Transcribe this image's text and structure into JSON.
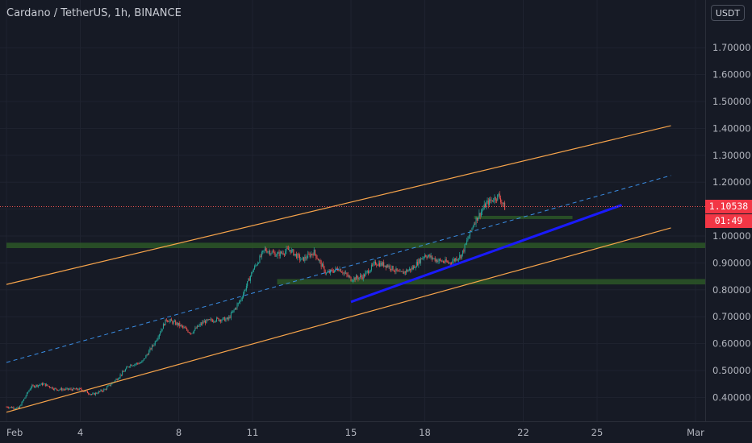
{
  "header": {
    "symbol_title": "Cardano / TetherUS, 1h, BINANCE",
    "currency_button": "USDT"
  },
  "price_badge": {
    "price": "1.10538",
    "countdown": "01:49",
    "color": "#f23645"
  },
  "colors": {
    "background": "#161a25",
    "grid": "#1f2330",
    "up_candle": "#26a69a",
    "down_candle": "#ef5350",
    "channel": "#f7a44b",
    "trendline": "#1a1aff",
    "midline": "#3a8ee6",
    "zone": "#2d5a27"
  },
  "chart_data": {
    "type": "candlestick",
    "symbol": "Cardano / TetherUS",
    "interval": "1h",
    "exchange": "BINANCE",
    "y_tick_labels": [
      "1.70000",
      "1.60000",
      "1.50000",
      "1.40000",
      "1.30000",
      "1.20000",
      "1.10000",
      "1.00000",
      "0.90000",
      "0.80000",
      "0.70000",
      "0.60000",
      "0.50000",
      "0.40000"
    ],
    "y_ticks": [
      1.7,
      1.6,
      1.5,
      1.4,
      1.3,
      1.2,
      1.1,
      1.0,
      0.9,
      0.8,
      0.7,
      0.6,
      0.5,
      0.4
    ],
    "x_tick_labels": [
      "Feb",
      "4",
      "8",
      "11",
      "15",
      "18",
      "22",
      "25",
      "Mar"
    ],
    "x_ticks": [
      "2021-02-01",
      "2021-02-04",
      "2021-02-08",
      "2021-02-11",
      "2021-02-15",
      "2021-02-18",
      "2021-02-22",
      "2021-02-25",
      "2021-03-01"
    ],
    "grid": true,
    "last_price": 1.10538,
    "price_path": [
      [
        "2021-02-01",
        0.365
      ],
      [
        "2021-02-01T12",
        0.36
      ],
      [
        "2021-02-02",
        0.44
      ],
      [
        "2021-02-02T12",
        0.45
      ],
      [
        "2021-02-03",
        0.43
      ],
      [
        "2021-02-03T12",
        0.43
      ],
      [
        "2021-02-04",
        0.43
      ],
      [
        "2021-02-04T12",
        0.41
      ],
      [
        "2021-02-05",
        0.43
      ],
      [
        "2021-02-05T12",
        0.47
      ],
      [
        "2021-02-06",
        0.52
      ],
      [
        "2021-02-06T12",
        0.53
      ],
      [
        "2021-02-07",
        0.6
      ],
      [
        "2021-02-07T12",
        0.69
      ],
      [
        "2021-02-08",
        0.67
      ],
      [
        "2021-02-08T12",
        0.64
      ],
      [
        "2021-02-09",
        0.68
      ],
      [
        "2021-02-09T12",
        0.69
      ],
      [
        "2021-02-10",
        0.69
      ],
      [
        "2021-02-10T12",
        0.76
      ],
      [
        "2021-02-11",
        0.87
      ],
      [
        "2021-02-11T12",
        0.95
      ],
      [
        "2021-02-12",
        0.93
      ],
      [
        "2021-02-12T12",
        0.95
      ],
      [
        "2021-02-13",
        0.91
      ],
      [
        "2021-02-13T12",
        0.94
      ],
      [
        "2021-02-14",
        0.86
      ],
      [
        "2021-02-14T12",
        0.88
      ],
      [
        "2021-02-15",
        0.84
      ],
      [
        "2021-02-15T12",
        0.85
      ],
      [
        "2021-02-16",
        0.9
      ],
      [
        "2021-02-16T12",
        0.89
      ],
      [
        "2021-02-17",
        0.86
      ],
      [
        "2021-02-17T12",
        0.88
      ],
      [
        "2021-02-18",
        0.93
      ],
      [
        "2021-02-18T12",
        0.91
      ],
      [
        "2021-02-19",
        0.9
      ],
      [
        "2021-02-19T12",
        0.93
      ],
      [
        "2021-02-20",
        1.05
      ],
      [
        "2021-02-20T12",
        1.12
      ],
      [
        "2021-02-21",
        1.15
      ],
      [
        "2021-02-21T06",
        1.105
      ]
    ],
    "annotations": {
      "channel_upper": [
        [
          "2021-02-01",
          0.82
        ],
        [
          "2021-02-28",
          1.41
        ]
      ],
      "channel_mid": [
        [
          "2021-02-01",
          0.53
        ],
        [
          "2021-02-28",
          1.225
        ]
      ],
      "channel_lower": [
        [
          "2021-02-01",
          0.345
        ],
        [
          "2021-02-28",
          1.03
        ]
      ],
      "blue_trendline": [
        [
          "2021-02-15",
          0.755
        ],
        [
          "2021-02-26",
          1.115
        ]
      ],
      "support_zones": [
        {
          "from": "2021-02-20",
          "to": "2021-02-24",
          "low": 1.065,
          "high": 1.075
        },
        {
          "from": "2021-02-01",
          "to": "2021-03-02",
          "low": 0.955,
          "high": 0.975
        },
        {
          "from": "2021-02-12",
          "to": "2021-03-02",
          "low": 0.82,
          "high": 0.84
        }
      ]
    }
  }
}
